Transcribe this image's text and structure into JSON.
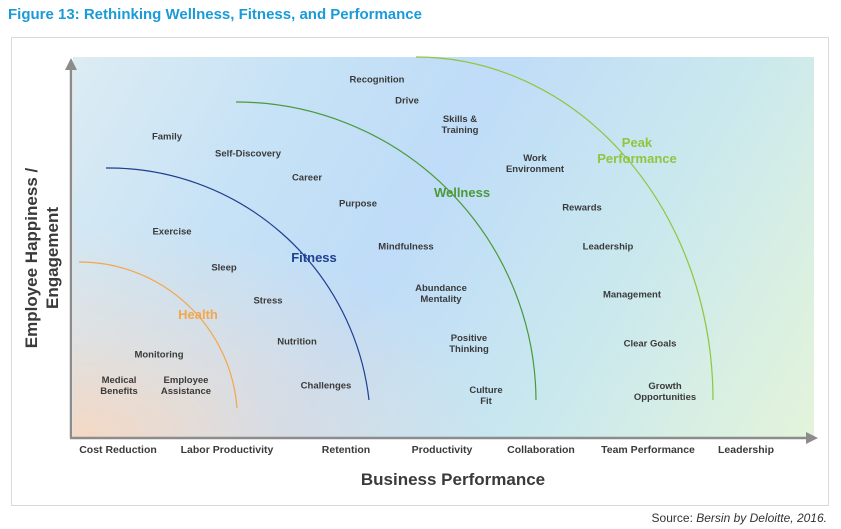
{
  "figure_title": "Figure 13: Rethinking Wellness, Fitness, and Performance",
  "axes": {
    "x_title": "Business Performance",
    "y_title_line1": "Employee Happiness /",
    "y_title_line2": "Engagement",
    "x_ticks": [
      "Cost Reduction",
      "Labor Productivity",
      "Retention",
      "Productivity",
      "Collaboration",
      "Team Performance",
      "Leadership"
    ]
  },
  "zones": [
    {
      "key": "health",
      "label": "Health",
      "color": "#f4a64a"
    },
    {
      "key": "fitness",
      "label": "Fitness",
      "color": "#1f3f8f"
    },
    {
      "key": "wellness",
      "label": "Wellness",
      "color": "#4a9a3a"
    },
    {
      "key": "peak",
      "label": "Peak\nPerformance",
      "color": "#8dc63f"
    }
  ],
  "items": {
    "health": [
      "Monitoring",
      "Medical\nBenefits",
      "Employee\nAssistance"
    ],
    "fitness": [
      "Family",
      "Exercise",
      "Sleep",
      "Stress",
      "Nutrition",
      "Challenges"
    ],
    "wellness": [
      "Self-Discovery",
      "Career",
      "Purpose",
      "Mindfulness",
      "Abundance\nMentality",
      "Positive\nThinking",
      "Culture\nFit"
    ],
    "peak": [
      "Recognition",
      "Drive",
      "Skills &\nTraining",
      "Work\nEnvironment",
      "Rewards",
      "Leadership",
      "Management",
      "Clear Goals",
      "Growth\nOpportunities"
    ]
  },
  "source": {
    "prefix": "Source: ",
    "citation": "Bersin by Deloitte, 2016."
  }
}
